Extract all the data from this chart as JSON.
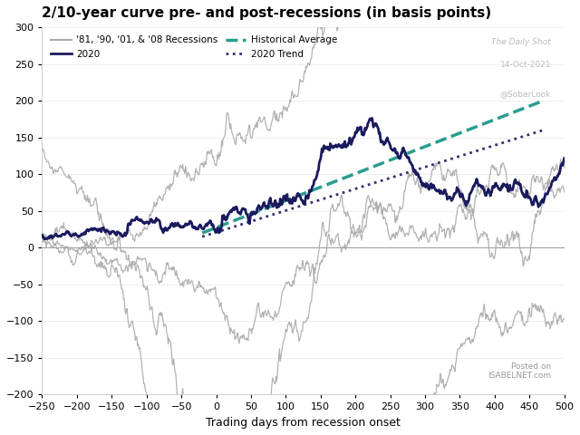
{
  "title": "2/10-year curve pre- and post-recessions (in basis points)",
  "xlabel": "Trading days from recession onset",
  "xlim": [
    -250,
    500
  ],
  "ylim": [
    -200,
    300
  ],
  "xticks": [
    -250,
    -200,
    -150,
    -100,
    -50,
    0,
    50,
    100,
    150,
    200,
    250,
    300,
    350,
    400,
    450,
    500
  ],
  "yticks": [
    -200,
    -150,
    -100,
    -50,
    0,
    50,
    100,
    150,
    200,
    250,
    300
  ],
  "hist_avg_color": "#2a9d8f",
  "trend_color": "#333370",
  "line_2020_color": "#1a1a5e",
  "hist_line_color": "#aaaaaa",
  "bg_color": "#ffffff",
  "plot_bg_color": "#ffffff",
  "hist_avg_x_start": -20,
  "hist_avg_y_start": 20,
  "hist_avg_x_end": 470,
  "hist_avg_y_end": 200,
  "trend_x_start": -20,
  "trend_y_start": 15,
  "trend_x_end": 470,
  "trend_y_end": 160
}
